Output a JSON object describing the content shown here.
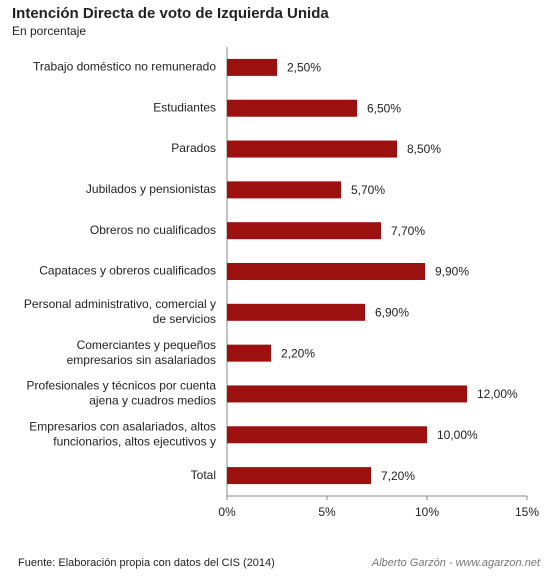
{
  "chart_data": {
    "type": "bar",
    "orientation": "horizontal",
    "title": "Intención Directa de voto de Izquierda Unida",
    "subtitle": "En porcentaje",
    "source": "Fuente: Elaboración propia con datos del CIS (2014)",
    "credit": "Alberto Garzón - www.agarzon.net",
    "categories": [
      [
        "Trabajo doméstico no remunerado"
      ],
      [
        "Estudiantes"
      ],
      [
        "Parados"
      ],
      [
        "Jubilados y pensionistas"
      ],
      [
        "Obreros no cualificados"
      ],
      [
        "Capataces y obreros cualificados"
      ],
      [
        "Personal administrativo, comercial y",
        "de servicios"
      ],
      [
        "Comerciantes y pequeños",
        "empresarios sin asalariados"
      ],
      [
        "Profesionales y técnicos por cuenta",
        "ajena y cuadros medios"
      ],
      [
        "Empresarios con asalariados, altos",
        "funcionarios, altos ejecutivos y"
      ],
      [
        "Total"
      ]
    ],
    "values": [
      2.5,
      6.5,
      8.5,
      5.7,
      7.7,
      9.9,
      6.9,
      2.2,
      12,
      10,
      7.2
    ],
    "value_labels": [
      "2,50%",
      "6,50%",
      "8,50%",
      "5,70%",
      "7,70%",
      "9,90%",
      "6,90%",
      "2,20%",
      "12,00%",
      "10,00%",
      "7,20%"
    ],
    "color": "#9c1010",
    "xlim": [
      0,
      15
    ],
    "xticks": [
      {
        "value": 0,
        "label": "0%"
      },
      {
        "value": 5,
        "label": "5%"
      },
      {
        "value": 10,
        "label": "10%"
      },
      {
        "value": 15,
        "label": "15%"
      }
    ]
  }
}
